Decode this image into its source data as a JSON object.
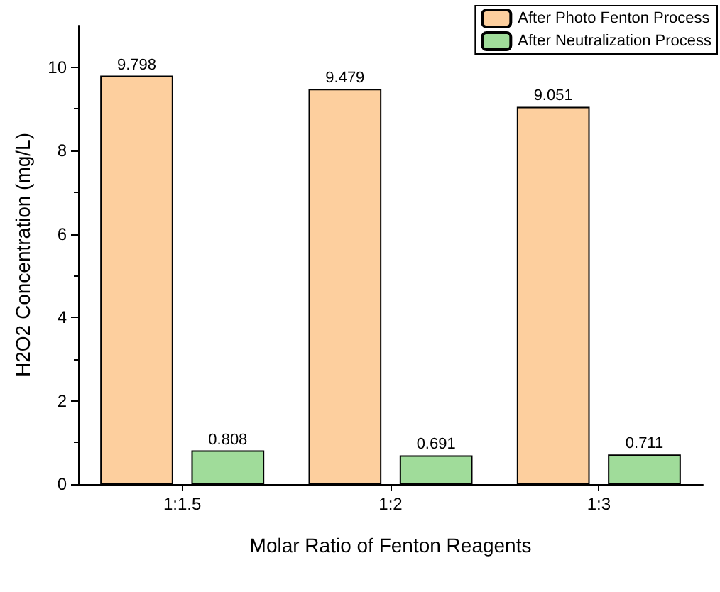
{
  "chart_data": {
    "type": "bar",
    "xlabel": "Molar Ratio of Fenton Reagents",
    "ylabel": "H2O2 Concentration (mg/L)",
    "categories": [
      "1:1.5",
      "1:2",
      "1:3"
    ],
    "series": [
      {
        "name": "After Photo Fenton Process",
        "color": "#fdcf9e",
        "values": [
          9.798,
          9.479,
          9.051
        ]
      },
      {
        "name": "After Neutralization Process",
        "color": "#a0dc9a",
        "values": [
          0.808,
          0.691,
          0.711
        ]
      }
    ],
    "ylim": [
      0,
      11
    ],
    "yticks": [
      0,
      2,
      4,
      6,
      8,
      10
    ],
    "data_labels": true,
    "grid": false,
    "legend": "top right"
  }
}
